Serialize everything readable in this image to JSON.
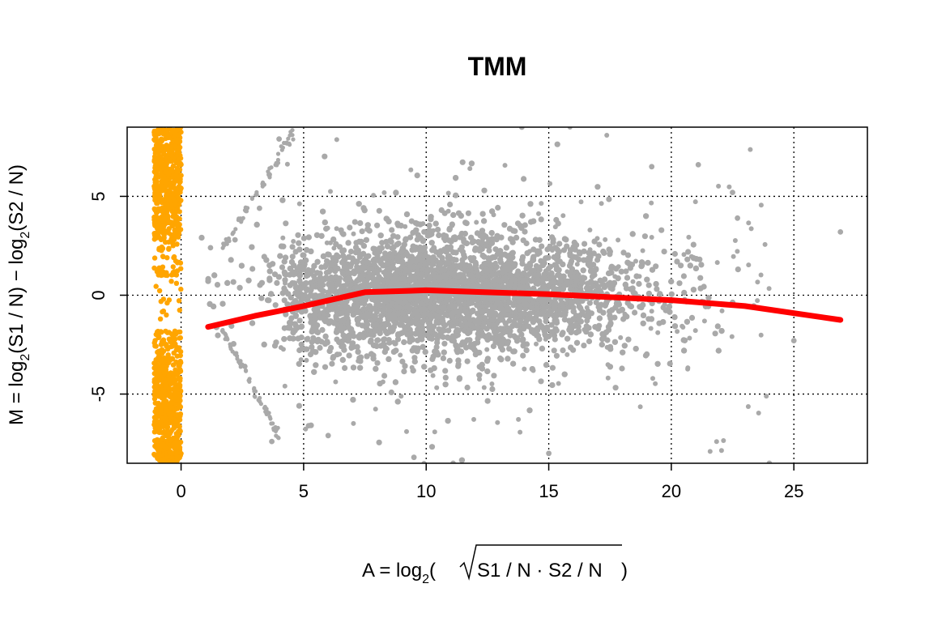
{
  "chart_data": {
    "type": "scatter",
    "title": "TMM",
    "xlabel_parts": {
      "a_eq": "A = log",
      "sub": "2",
      "open": "(",
      "radicand": "S1 / N · S2 / N",
      "close": ")"
    },
    "ylabel_parts": {
      "m_eq": "M = log",
      "sub1": "2",
      "mid": "(S1 / N) − log",
      "sub2": "2",
      "end": "(S2 / N)"
    },
    "xlim": [
      -2.2,
      28
    ],
    "ylim": [
      -8.5,
      8.5
    ],
    "x_ticks": [
      0,
      5,
      10,
      15,
      20,
      25
    ],
    "x_tick_labels": [
      "0",
      "5",
      "10",
      "15",
      "20",
      "25"
    ],
    "y_ticks": [
      -5,
      0,
      5
    ],
    "y_tick_labels": [
      "-5",
      "0",
      "5"
    ],
    "grid": true,
    "grid_style": "dotted",
    "colors": {
      "points": "#a9a9a9",
      "zero_count_points": "#ffa500",
      "fit_line": "#ff0000"
    },
    "series": [
      {
        "role": "genes with zero counts (A undefined)",
        "color": "#ffa500",
        "x_range": [
          -1.1,
          0
        ],
        "y_range": [
          -8.5,
          8.5
        ],
        "sample_points": [
          [
            -0.8,
            8.2
          ],
          [
            -0.5,
            5.1
          ],
          [
            -0.3,
            1.9
          ],
          [
            -0.9,
            1.3
          ],
          [
            -0.6,
            -1.0
          ],
          [
            -0.4,
            -2.6
          ],
          [
            -0.2,
            -5.0
          ],
          [
            -0.7,
            -8.3
          ]
        ]
      },
      {
        "role": "genes",
        "color": "#a9a9a9",
        "density_center": {
          "x": 10,
          "y": 0
        },
        "sample_points": [
          [
            1.2,
            2.4
          ],
          [
            1.5,
            -1.5
          ],
          [
            2.2,
            2.8
          ],
          [
            2.6,
            -3.6
          ],
          [
            3.2,
            4.4
          ],
          [
            3.6,
            6.1
          ],
          [
            3.7,
            -7.4
          ],
          [
            4.0,
            7.9
          ],
          [
            5.2,
            -6.6
          ],
          [
            6.0,
            -7.1
          ],
          [
            9.5,
            -8.2
          ],
          [
            11.1,
            -8.5
          ],
          [
            13.9,
            8.5
          ],
          [
            15.0,
            -8.0
          ],
          [
            19.2,
            6.5
          ],
          [
            21.1,
            6.6
          ],
          [
            22.5,
            5.2
          ],
          [
            22.7,
            3.9
          ],
          [
            24.0,
            -8.5
          ],
          [
            25.0,
            -2.3
          ],
          [
            26.9,
            3.2
          ]
        ]
      }
    ],
    "fit_line": {
      "name": "loess fit",
      "color": "#ff0000",
      "x": [
        1.1,
        3,
        5,
        7.5,
        10,
        15,
        20,
        23,
        26.9
      ],
      "y": [
        -1.6,
        -1.05,
        -0.55,
        0.15,
        0.25,
        0.05,
        -0.25,
        -0.55,
        -1.25
      ]
    }
  }
}
